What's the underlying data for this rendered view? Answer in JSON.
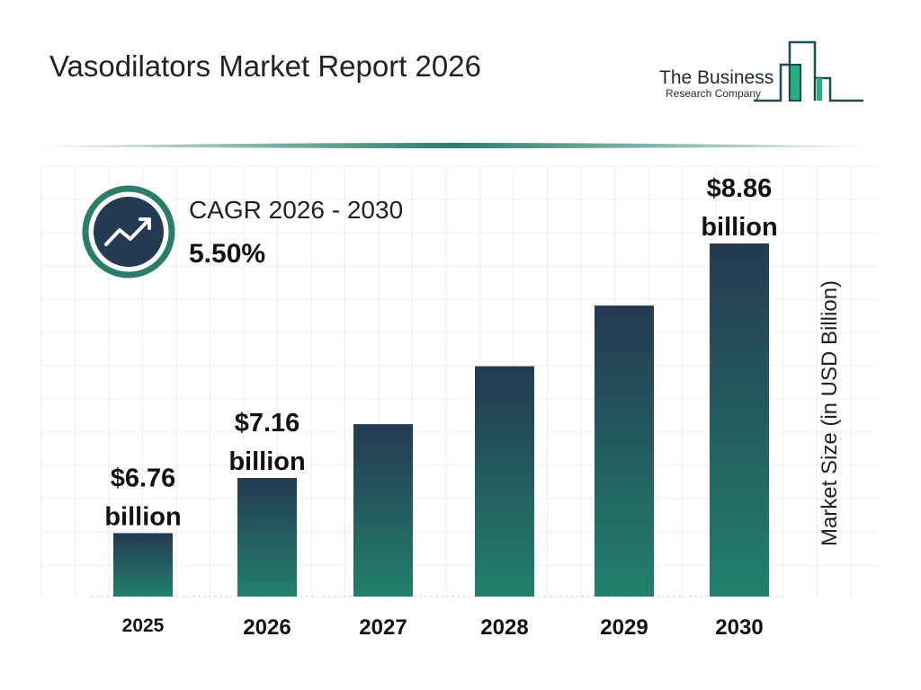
{
  "header": {
    "title": "Vasodilators Market Report 2026",
    "logo_line1": "The Business",
    "logo_line2": "Research Company"
  },
  "cagr": {
    "label": "CAGR 2026 - 2030",
    "value": "5.50%",
    "icon": "trend-up-arrow-icon"
  },
  "colors": {
    "bar_top": "#243a52",
    "bar_bottom": "#22806c",
    "accent": "#2a7d6a"
  },
  "chart_data": {
    "type": "bar",
    "categories": [
      "2025",
      "2026",
      "2027",
      "2028",
      "2029",
      "2030"
    ],
    "values": [
      6.76,
      7.16,
      7.55,
      7.97,
      8.41,
      8.86
    ],
    "data_labels": [
      [
        "$6.76",
        "billion"
      ],
      [
        "$7.16",
        "billion"
      ],
      null,
      null,
      null,
      [
        "$8.86",
        "billion"
      ]
    ],
    "ylabel": "Market Size (in USD Billion)",
    "xlabel": "",
    "grid": true
  }
}
